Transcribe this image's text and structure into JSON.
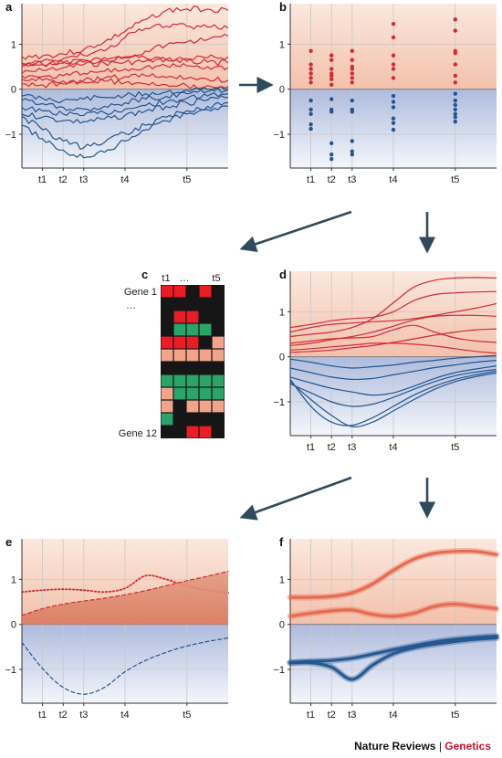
{
  "colors": {
    "red": "#d42a35",
    "blue": "#23558f",
    "salmon_line": "#e4684d",
    "heat_red": "#ec1c24",
    "heat_green": "#2aa468",
    "heat_salmon": "#f2a489",
    "heat_black": "#161616",
    "band_pos": "#f3c1ab",
    "band_neg": "#aebbdd",
    "arrow": "#2e4a5c"
  },
  "credit": {
    "journal": "Nature Reviews",
    "separator": "|",
    "section": "Genetics"
  },
  "time_points": [
    {
      "label": "t1",
      "t": 1
    },
    {
      "label": "t2",
      "t": 2
    },
    {
      "label": "t3",
      "t": 3
    },
    {
      "label": "t4",
      "t": 5
    },
    {
      "label": "t5",
      "t": 8
    }
  ],
  "y_ticks": [
    "1",
    "0",
    "−1"
  ],
  "chart_data": [
    {
      "panel": "a",
      "type": "line",
      "x": [
        0,
        1,
        2,
        3,
        4,
        5,
        6,
        7,
        8,
        9,
        10
      ],
      "ylim": [
        -1.75,
        1.9
      ],
      "series": [
        {
          "color": "red",
          "values": [
            0.72,
            0.74,
            0.78,
            0.88,
            1.05,
            1.28,
            1.55,
            1.75,
            1.78,
            1.78,
            1.75
          ]
        },
        {
          "color": "red",
          "values": [
            0.58,
            0.62,
            0.68,
            0.75,
            0.85,
            1.15,
            1.35,
            1.4,
            1.4,
            1.38,
            1.36
          ]
        },
        {
          "color": "red",
          "values": [
            0.55,
            0.56,
            0.58,
            0.6,
            0.64,
            0.7,
            0.85,
            0.98,
            1.05,
            1.1,
            1.18
          ]
        },
        {
          "color": "red",
          "values": [
            0.5,
            0.55,
            0.6,
            0.65,
            0.7,
            0.72,
            0.7,
            0.66,
            0.62,
            0.6,
            0.58
          ]
        },
        {
          "color": "red",
          "values": [
            0.35,
            0.42,
            0.48,
            0.55,
            0.58,
            0.6,
            0.62,
            0.66,
            0.68,
            0.7,
            0.72
          ]
        },
        {
          "color": "red",
          "values": [
            0.3,
            0.28,
            0.3,
            0.35,
            0.4,
            0.45,
            0.5,
            0.52,
            0.52,
            0.5,
            0.48
          ]
        },
        {
          "color": "red",
          "values": [
            0.22,
            0.2,
            0.18,
            0.2,
            0.25,
            0.28,
            0.3,
            0.26,
            0.24,
            0.22,
            0.2
          ]
        },
        {
          "color": "red",
          "values": [
            0.12,
            0.1,
            0.12,
            0.15,
            0.18,
            0.15,
            0.12,
            0.1,
            0.08,
            0.08,
            0.06
          ]
        },
        {
          "color": "blue",
          "values": [
            -0.15,
            -0.2,
            -0.25,
            -0.22,
            -0.18,
            -0.14,
            -0.1,
            -0.06,
            -0.02,
            0.0,
            0.02
          ]
        },
        {
          "color": "blue",
          "values": [
            -0.25,
            -0.32,
            -0.4,
            -0.44,
            -0.38,
            -0.3,
            -0.22,
            -0.16,
            -0.1,
            -0.05,
            -0.02
          ]
        },
        {
          "color": "blue",
          "values": [
            -0.4,
            -0.48,
            -0.55,
            -0.58,
            -0.52,
            -0.44,
            -0.36,
            -0.28,
            -0.2,
            -0.15,
            -0.1
          ]
        },
        {
          "color": "blue",
          "values": [
            -0.55,
            -0.62,
            -0.7,
            -0.72,
            -0.66,
            -0.58,
            -0.48,
            -0.38,
            -0.3,
            -0.24,
            -0.18
          ]
        },
        {
          "color": "blue",
          "values": [
            -0.6,
            -0.9,
            -1.15,
            -1.3,
            -1.18,
            -0.98,
            -0.8,
            -0.62,
            -0.48,
            -0.38,
            -0.3
          ]
        },
        {
          "color": "blue",
          "values": [
            -0.8,
            -1.1,
            -1.35,
            -1.52,
            -1.4,
            -1.15,
            -0.9,
            -0.7,
            -0.55,
            -0.45,
            -0.38
          ]
        }
      ]
    },
    {
      "panel": "b",
      "type": "scatter",
      "ylim": [
        -1.75,
        1.9
      ],
      "columns": [
        {
          "t": 1,
          "red": [
            0.85,
            0.55,
            0.45,
            0.35,
            0.25,
            0.15
          ],
          "blue": [
            -0.25,
            -0.45,
            -0.55,
            -0.78,
            -0.88
          ]
        },
        {
          "t": 2,
          "red": [
            0.75,
            0.65,
            0.45,
            0.35,
            0.3,
            0.22,
            0.1
          ],
          "blue": [
            -0.22,
            -0.45,
            -0.5,
            -1.2,
            -1.45,
            -1.55
          ]
        },
        {
          "t": 3,
          "red": [
            0.85,
            0.65,
            0.5,
            0.45,
            0.35,
            0.25,
            0.15
          ],
          "blue": [
            -0.25,
            -0.45,
            -0.5,
            -1.15,
            -1.38,
            -1.45
          ]
        },
        {
          "t": 5,
          "red": [
            1.45,
            1.15,
            0.75,
            0.55,
            0.45,
            0.25
          ],
          "blue": [
            -0.15,
            -0.28,
            -0.4,
            -0.65,
            -0.75,
            -0.9
          ]
        },
        {
          "t": 8,
          "red": [
            1.55,
            1.3,
            0.85,
            0.8,
            0.55,
            0.3,
            0.15
          ],
          "blue": [
            -0.1,
            -0.25,
            -0.35,
            -0.45,
            -0.55,
            -0.62,
            -0.72
          ]
        }
      ]
    },
    {
      "panel": "c",
      "type": "heatmap",
      "column_labels": [
        "t1",
        "…",
        "t5"
      ],
      "row_labels": [
        "Gene 1",
        "…",
        "Gene 12"
      ],
      "cells": [
        [
          "R",
          "R",
          "K",
          "R",
          "K"
        ],
        [
          "K",
          "K",
          "K",
          "K",
          "K"
        ],
        [
          "K",
          "R",
          "R",
          "K",
          "K"
        ],
        [
          "K",
          "G",
          "G",
          "G",
          "K"
        ],
        [
          "R",
          "R",
          "R",
          "K",
          "S"
        ],
        [
          "S",
          "S",
          "S",
          "S",
          "S"
        ],
        [
          "K",
          "K",
          "K",
          "K",
          "K"
        ],
        [
          "G",
          "G",
          "G",
          "G",
          "G"
        ],
        [
          "S",
          "G",
          "G",
          "G",
          "G"
        ],
        [
          "S",
          "K",
          "S",
          "S",
          "S"
        ],
        [
          "G",
          "K",
          "K",
          "K",
          "K"
        ],
        [
          "K",
          "K",
          "R",
          "R",
          "K"
        ]
      ]
    },
    {
      "panel": "d",
      "type": "line",
      "x": [
        0,
        1,
        2,
        3,
        4,
        5,
        6,
        7,
        8,
        9,
        10
      ],
      "ylim": [
        -1.75,
        1.9
      ],
      "series": [
        {
          "color": "red",
          "values": [
            0.45,
            0.5,
            0.55,
            0.65,
            0.85,
            1.2,
            1.55,
            1.7,
            1.75,
            1.76,
            1.75
          ]
        },
        {
          "color": "red",
          "values": [
            0.65,
            0.72,
            0.8,
            0.85,
            0.88,
            1.0,
            1.25,
            1.38,
            1.42,
            1.44,
            1.45
          ]
        },
        {
          "color": "red",
          "values": [
            0.55,
            0.65,
            0.72,
            0.75,
            0.78,
            0.8,
            0.85,
            0.92,
            1.0,
            1.08,
            1.18
          ]
        },
        {
          "color": "red",
          "values": [
            0.25,
            0.3,
            0.38,
            0.45,
            0.55,
            0.68,
            0.82,
            0.9,
            0.92,
            0.92,
            0.9
          ]
        },
        {
          "color": "red",
          "values": [
            0.3,
            0.35,
            0.4,
            0.42,
            0.45,
            0.6,
            0.7,
            0.55,
            0.42,
            0.35,
            0.32
          ]
        },
        {
          "color": "red",
          "values": [
            0.1,
            0.12,
            0.15,
            0.2,
            0.25,
            0.32,
            0.4,
            0.48,
            0.55,
            0.6,
            0.62
          ]
        },
        {
          "color": "red",
          "values": [
            0.15,
            0.18,
            0.22,
            0.26,
            0.3,
            0.3,
            0.28,
            0.24,
            0.18,
            0.12,
            0.08
          ]
        },
        {
          "color": "blue",
          "values": [
            -0.05,
            -0.12,
            -0.2,
            -0.25,
            -0.22,
            -0.18,
            -0.12,
            -0.08,
            -0.03,
            0.0,
            0.03
          ]
        },
        {
          "color": "blue",
          "values": [
            -0.25,
            -0.35,
            -0.45,
            -0.5,
            -0.48,
            -0.4,
            -0.32,
            -0.24,
            -0.18,
            -0.12,
            -0.08
          ]
        },
        {
          "color": "blue",
          "values": [
            -0.45,
            -0.58,
            -0.7,
            -0.78,
            -0.85,
            -0.8,
            -0.65,
            -0.48,
            -0.35,
            -0.27,
            -0.2
          ]
        },
        {
          "color": "blue",
          "values": [
            -0.6,
            -0.8,
            -1.0,
            -1.1,
            -1.05,
            -0.9,
            -0.72,
            -0.55,
            -0.42,
            -0.34,
            -0.28
          ]
        },
        {
          "color": "blue",
          "values": [
            -0.5,
            -1.1,
            -1.45,
            -1.52,
            -1.35,
            -1.1,
            -0.85,
            -0.65,
            -0.5,
            -0.4,
            -0.32
          ]
        },
        {
          "color": "blue",
          "values": [
            -0.55,
            -0.95,
            -1.3,
            -1.55,
            -1.45,
            -1.2,
            -0.95,
            -0.72,
            -0.55,
            -0.44,
            -0.36
          ]
        }
      ]
    },
    {
      "panel": "e",
      "type": "line",
      "x": [
        0,
        1,
        2,
        3,
        4,
        5,
        6,
        7,
        8,
        9,
        10
      ],
      "ylim": [
        -1.75,
        1.9
      ],
      "series": [
        {
          "style": "dotted",
          "color": "red",
          "values": [
            0.72,
            0.76,
            0.78,
            0.76,
            0.72,
            0.8,
            1.08,
            1.0,
            0.85,
            0.76,
            0.7
          ]
        },
        {
          "style": "dashed",
          "color": "red",
          "fill": true,
          "values": [
            0.2,
            0.35,
            0.45,
            0.52,
            0.58,
            0.66,
            0.75,
            0.86,
            0.97,
            1.07,
            1.18
          ]
        },
        {
          "style": "dashed",
          "color": "blue",
          "values": [
            -0.4,
            -0.98,
            -1.4,
            -1.55,
            -1.4,
            -1.05,
            -0.8,
            -0.62,
            -0.48,
            -0.38,
            -0.3
          ]
        }
      ]
    },
    {
      "panel": "f",
      "type": "line",
      "x": [
        0,
        1,
        2,
        3,
        4,
        5,
        6,
        7,
        8,
        9,
        10
      ],
      "ylim": [
        -1.75,
        1.9
      ],
      "series": [
        {
          "style": "band",
          "color": "salmon_line",
          "values": [
            0.6,
            0.6,
            0.62,
            0.7,
            0.9,
            1.2,
            1.45,
            1.58,
            1.62,
            1.62,
            1.55
          ]
        },
        {
          "style": "band",
          "color": "salmon_line",
          "values": [
            0.18,
            0.25,
            0.3,
            0.32,
            0.22,
            0.18,
            0.25,
            0.4,
            0.45,
            0.4,
            0.35
          ]
        },
        {
          "style": "band",
          "color": "blue",
          "values": [
            -0.85,
            -0.85,
            -0.95,
            -1.22,
            -0.9,
            -0.65,
            -0.52,
            -0.44,
            -0.38,
            -0.33,
            -0.3
          ]
        },
        {
          "style": "band",
          "color": "blue",
          "values": [
            -0.85,
            -0.82,
            -0.8,
            -0.75,
            -0.66,
            -0.56,
            -0.47,
            -0.39,
            -0.33,
            -0.29,
            -0.26
          ]
        }
      ]
    }
  ]
}
